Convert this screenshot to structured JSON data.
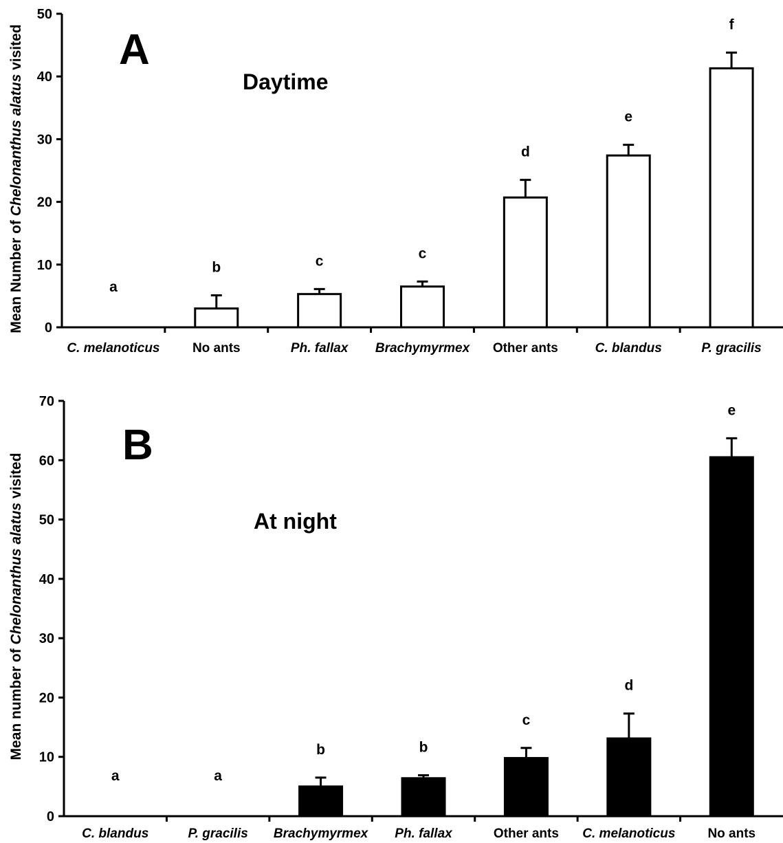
{
  "chart_data": [
    {
      "type": "bar",
      "panel_letter": "A",
      "title": "Daytime",
      "ylabel": {
        "prefix": "Mean Number of ",
        "species": "Chelonanthus alatus",
        "suffix": " visited"
      },
      "xlabel": "",
      "ylim": [
        0,
        50
      ],
      "yticks": [
        0,
        10,
        20,
        30,
        40,
        50
      ],
      "bar_color": "#ffffff",
      "categories": [
        "C. melanoticus",
        "No ants",
        "Ph. fallax",
        "Brachymyrmex",
        "Other ants",
        "C. blandus",
        "P. gracilis"
      ],
      "italic": [
        true,
        false,
        true,
        true,
        false,
        true,
        true
      ],
      "values": [
        0,
        3,
        5.3,
        6.5,
        20.7,
        27.4,
        41.3
      ],
      "errors": [
        0,
        2.1,
        0.8,
        0.8,
        2.8,
        1.7,
        2.5
      ],
      "significance": [
        "a",
        "b",
        "c",
        "c",
        "d",
        "e",
        "f"
      ]
    },
    {
      "type": "bar",
      "panel_letter": "B",
      "title": "At night",
      "ylabel": {
        "prefix": "Mean number of ",
        "species": "Chelonanthus alatus",
        "suffix": " visited"
      },
      "xlabel": "",
      "ylim": [
        0,
        70
      ],
      "yticks": [
        0,
        10,
        20,
        30,
        40,
        50,
        60,
        70
      ],
      "bar_color": "#000000",
      "categories": [
        "C. blandus",
        "P. gracilis",
        "Brachymyrmex",
        "Ph. fallax",
        "Other ants",
        "C. melanoticus",
        "No ants"
      ],
      "italic": [
        true,
        true,
        true,
        true,
        false,
        true,
        false
      ],
      "values": [
        0,
        0,
        5,
        6.4,
        9.8,
        13.1,
        60.5
      ],
      "errors": [
        0,
        0,
        1.5,
        0.5,
        1.7,
        4.2,
        3.2
      ],
      "significance": [
        "a",
        "a",
        "b",
        "b",
        "c",
        "d",
        "e"
      ]
    }
  ]
}
